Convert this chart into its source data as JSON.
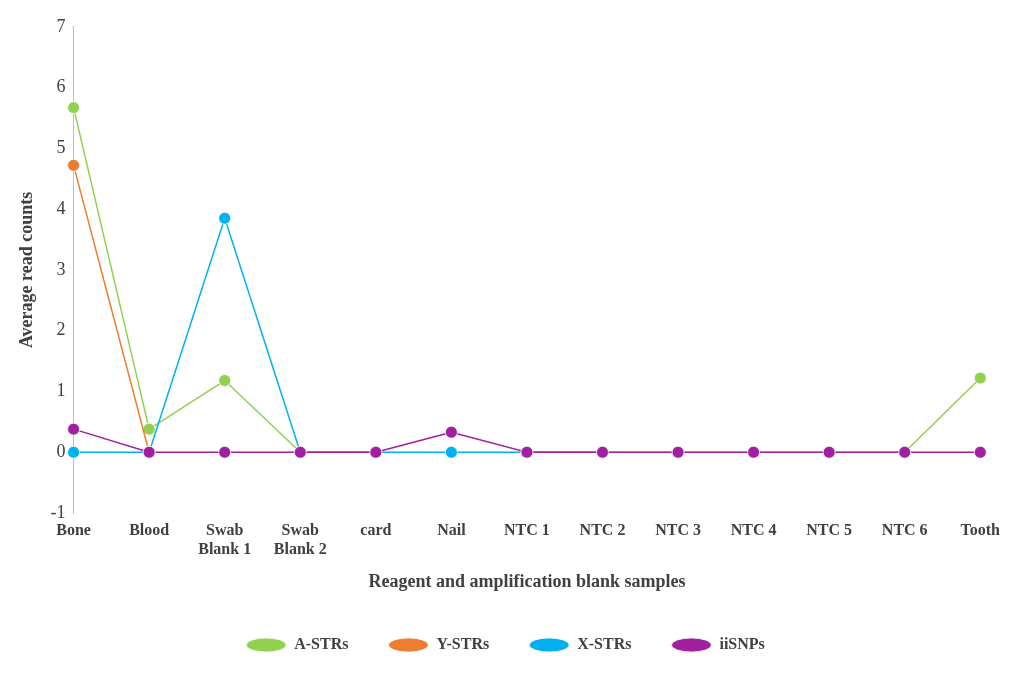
{
  "chart_data": {
    "type": "line",
    "xlabel": "Reagent and amplification blank samples",
    "ylabel": "Average read counts",
    "categories": [
      "Bone",
      "Blood",
      "Swab Blank 1",
      "Swab Blank 2",
      "card",
      "Nail",
      "NTC 1",
      "NTC 2",
      "NTC 3",
      "NTC 4",
      "NTC 5",
      "NTC 6",
      "Tooth"
    ],
    "series": [
      {
        "name": "A-STRs",
        "color": "#92d050",
        "values": [
          5.67,
          0.38,
          1.18,
          0,
          0,
          null,
          0,
          0,
          0,
          0,
          0,
          0,
          1.22
        ]
      },
      {
        "name": "Y-STRs",
        "color": "#ed7d31",
        "values": [
          4.72,
          0,
          null,
          null,
          null,
          null,
          null,
          null,
          null,
          null,
          null,
          null,
          null
        ]
      },
      {
        "name": "X-STRs",
        "color": "#00b0f0",
        "values": [
          0,
          0,
          3.85,
          0,
          0,
          0,
          0,
          0,
          null,
          null,
          null,
          null,
          null
        ]
      },
      {
        "name": "iiSNPs",
        "color": "#a0209f",
        "values": [
          0.38,
          0,
          0,
          0,
          0,
          0.33,
          0,
          0,
          0,
          0,
          0,
          0,
          0
        ]
      }
    ],
    "ylim": [
      -1,
      7
    ],
    "yticks": [
      -1,
      0,
      1,
      2,
      3,
      4,
      5,
      6,
      7
    ],
    "grid": false,
    "legend": "bottom",
    "marker": "circle",
    "line_style": "solid"
  }
}
